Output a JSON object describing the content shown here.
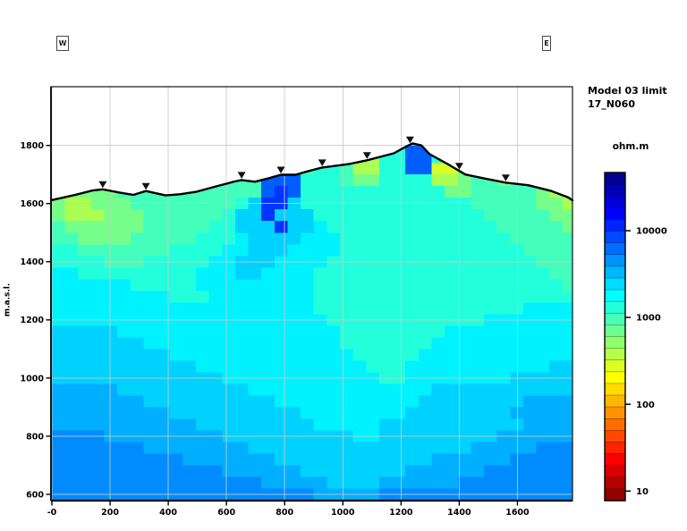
{
  "header": {
    "west_marker": "W",
    "east_marker": "E"
  },
  "legend": {
    "title_line1": "Model 03 limit",
    "title_line2": "17_N060",
    "units_label": "ohm.m",
    "tick_values": [
      10000,
      1000,
      100,
      10
    ]
  },
  "colors": {
    "grid": "#c8c8c8",
    "frame": "#000000",
    "terrain_line": "#000000",
    "marker": "#111111",
    "background": "#ffffff"
  },
  "chart_data": {
    "type": "heatmap",
    "title": "Model 03 limit 17_N060",
    "xlabel": "",
    "ylabel": "m.a.s.l.",
    "x_ticks": [
      "-0",
      "200",
      "400",
      "600",
      "800",
      "1000",
      "1200",
      "1400",
      "1600"
    ],
    "x_tick_values": [
      0,
      200,
      400,
      600,
      800,
      1000,
      1200,
      1400,
      1600
    ],
    "y_tick_values": [
      1800,
      1600,
      1400,
      1200,
      1000,
      800,
      600
    ],
    "x_range_m": [
      0,
      1792
    ],
    "y_range_m": [
      578,
      2003
    ],
    "grid_on": true,
    "colorbar": {
      "units": "ohm.m",
      "scale": "log10",
      "colormap": "jet-high-to-blue",
      "log_top": 4.67,
      "log_bottom": 0.89,
      "n_cells": 28,
      "tick_values": [
        10000,
        1000,
        100,
        10
      ]
    },
    "terrain_profile_m": [
      [
        0,
        1612
      ],
      [
        80,
        1630
      ],
      [
        140,
        1645
      ],
      [
        175,
        1649
      ],
      [
        237,
        1637
      ],
      [
        280,
        1630
      ],
      [
        323,
        1643
      ],
      [
        391,
        1628
      ],
      [
        440,
        1632
      ],
      [
        498,
        1641
      ],
      [
        560,
        1658
      ],
      [
        628,
        1676
      ],
      [
        652,
        1681
      ],
      [
        698,
        1675
      ],
      [
        745,
        1687
      ],
      [
        787,
        1699
      ],
      [
        837,
        1699
      ],
      [
        883,
        1712
      ],
      [
        929,
        1724
      ],
      [
        1021,
        1736
      ],
      [
        1083,
        1749
      ],
      [
        1175,
        1773
      ],
      [
        1221,
        1798
      ],
      [
        1240,
        1807
      ],
      [
        1270,
        1800
      ],
      [
        1298,
        1770
      ],
      [
        1360,
        1736
      ],
      [
        1421,
        1700
      ],
      [
        1483,
        1687
      ],
      [
        1560,
        1672
      ],
      [
        1637,
        1663
      ],
      [
        1714,
        1644
      ],
      [
        1775,
        1621
      ],
      [
        1792,
        1611
      ]
    ],
    "station_distances_m": [
      175,
      323,
      652,
      787,
      929,
      1083,
      1231,
      1400,
      1560
    ],
    "resistivity_grid": {
      "x0_m": 0,
      "dx_m": 45,
      "top_elevation_m": 1820,
      "cell_height_m": 40,
      "palette_log10_ohm_m": {
        "Y": 2.45,
        "y": 2.62,
        "g": 2.82,
        "G": 3.0,
        "t": 3.12,
        "c": 3.3,
        "C": 3.42,
        "s": 3.55,
        "d": 3.68,
        "b": 3.85,
        "B": 4.0
      },
      "rows": [
        "tttttttttttttttttttttttttttbbttttttttttt",
        "tttttttttttttttttttttttyyttbbttttttttttt",
        "tttttttttttttttttbbGttGyyttbbYYgtttttttt",
        "GGGGGGGGGGGGGGGGbbbtttGggttttyygGGgGGGGG",
        "GggggGGGGGGGGGGGbBbtttttttttttggGGGGGgyy",
        "gyygggGGGGGGGGtCBBCtttttttttttttGGGGGggy",
        "gyyygggGGGGGGtCCBCCCtttttttttttttGGGGGgg",
        "GggggggGGGGGttCCCBCCctttttttttttttGGGGGg",
        "GGggggGGGGGtttcCCCCccctttttttttttttGGGGG",
        "ttGGGGGGGttttccCCCccccttttttttttttttGGGG",
        "ttttGGGtttttccCCCccccttttttttttttttttGGG",
        "cctttttttttcccCCccccttttttttttttttttttGG",
        "cccccctttttccccccccctttttttttttttttttttG",
        "ccccccccctttтccccccctttttttttttttttttttt",
        "ccccccccccccccccccccttttttttttttttttcccc",
        "cccccccccccccccccccccttttttttttttccccccc",
        "CCCCCcccccccccccccccccttttttttcccccccccc",
        "CCCCCCCccccccccccccccctttttttccccccccccc",
        "CCCCCCCCCcccccccccccccctttttcccccccccccc",
        "CCCCCCCCCCCccccccccccccctttтccccccccccCC",
        "CCCCCCCCCCCCCccccccccccccttccccccccCCCCC",
        "sssssCCCCCCCCCCccccccccccccccCCCCCCCCCCC",
        "sssssssCCCCCCCCCCcccccccccccCCCCCCCCssss",
        "sssssssssCCCCCCCCCCccccccccCCCCCCCCsssss",
        "sssssssssssCCCCCCCCCcccccCCCCCCCCCCCssss",
        "ddddsssssssssCCCCCCCCCCccCCCCCCCCCssssss",
        "dddddddssssssssCCCCCCCCCCCCCCCCCsssssddd",
        "ddddddddddsssssssCCCCCCCCCCCCssssssddddd",
        "dddddddddddddssssssCCCCCCCCssssssddddddd",
        "ddddddddddddddddsssssCCCCssssssddddddddd",
        "ddddddddddddddddddddsssssddddddddddddddd"
      ]
    }
  }
}
